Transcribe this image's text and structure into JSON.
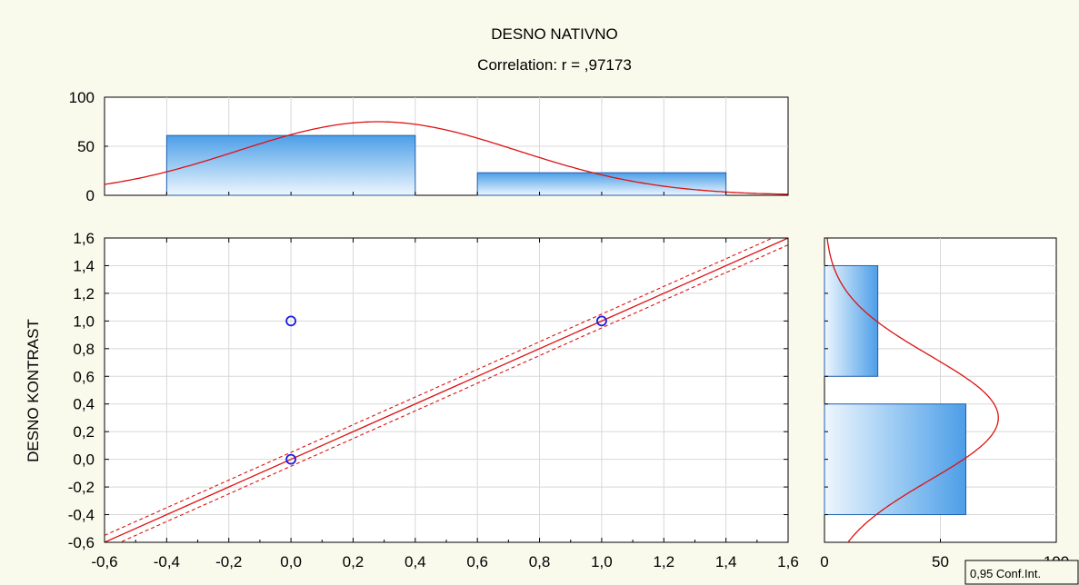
{
  "chart_data": {
    "type": "scatter",
    "title": "DESNO NATIVNO",
    "subtitle": "Correlation: r = ,97173",
    "xlabel": "",
    "ylabel": "DESNO KONTRAST",
    "xlim": [
      -0.6,
      1.6
    ],
    "ylim": [
      -0.6,
      1.6
    ],
    "x_ticks": [
      "-0,6",
      "-0,4",
      "-0,2",
      "0,0",
      "0,2",
      "0,4",
      "0,6",
      "0,8",
      "1,0",
      "1,2",
      "1,4",
      "1,6"
    ],
    "y_ticks": [
      "-0,6",
      "-0,4",
      "-0,2",
      "0,0",
      "0,2",
      "0,4",
      "0,6",
      "0,8",
      "1,0",
      "1,2",
      "1,4",
      "1,6"
    ],
    "grid": true,
    "points": [
      {
        "x": 0,
        "y": 0
      },
      {
        "x": 0,
        "y": 1
      },
      {
        "x": 1,
        "y": 1
      }
    ],
    "regression_line": {
      "intercept": 0.0,
      "slope": 1.0
    },
    "confidence_band": {
      "level": 0.95,
      "half_width": 0.05
    },
    "top_histogram": {
      "ylim": [
        0,
        100
      ],
      "y_ticks": [
        "0",
        "50",
        "100"
      ],
      "bins": [
        {
          "from": -0.4,
          "to": 0.4,
          "count": 61
        },
        {
          "from": 0.6,
          "to": 1.4,
          "count": 23
        }
      ],
      "normal_curve": {
        "mean": 0.28,
        "sd": 0.45,
        "peak": 75
      }
    },
    "right_histogram": {
      "xlim": [
        0,
        100
      ],
      "x_ticks": [
        "0",
        "50",
        "100"
      ],
      "bins": [
        {
          "from": -0.4,
          "to": 0.4,
          "count": 61
        },
        {
          "from": 0.6,
          "to": 1.4,
          "count": 23
        }
      ],
      "normal_curve": {
        "mean": 0.3,
        "sd": 0.45,
        "peak": 75
      }
    },
    "legend": {
      "label": "0,95 Conf.Int.",
      "placement": "bottom-right"
    }
  }
}
